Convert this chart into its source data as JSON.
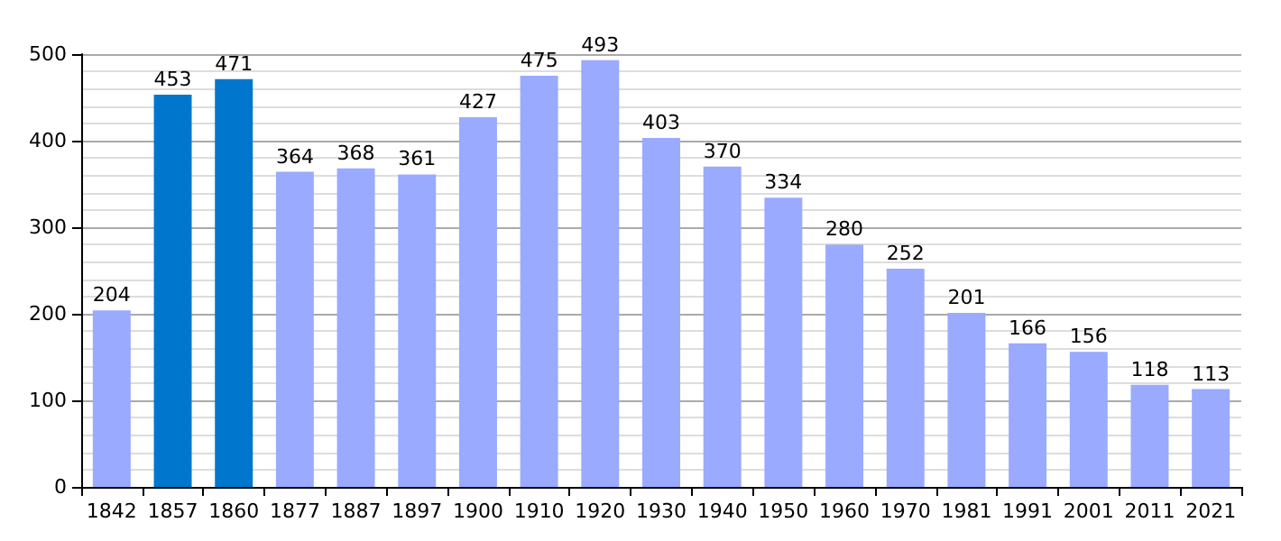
{
  "chart_data": {
    "type": "bar",
    "categories": [
      "1842",
      "1857",
      "1860",
      "1877",
      "1887",
      "1897",
      "1900",
      "1910",
      "1920",
      "1930",
      "1940",
      "1950",
      "1960",
      "1970",
      "1981",
      "1991",
      "2001",
      "2011",
      "2021"
    ],
    "values": [
      204,
      453,
      471,
      364,
      368,
      361,
      427,
      475,
      493,
      403,
      370,
      334,
      280,
      252,
      201,
      166,
      156,
      118,
      113
    ],
    "colors": [
      "#99aaff",
      "#0077cc",
      "#0077cc",
      "#99aaff",
      "#99aaff",
      "#99aaff",
      "#99aaff",
      "#99aaff",
      "#99aaff",
      "#99aaff",
      "#99aaff",
      "#99aaff",
      "#99aaff",
      "#99aaff",
      "#99aaff",
      "#99aaff",
      "#99aaff",
      "#99aaff",
      "#99aaff"
    ],
    "ylim": [
      0,
      500
    ],
    "yticks": [
      0,
      100,
      200,
      300,
      400,
      500
    ],
    "grid": true,
    "data_labels": true
  }
}
